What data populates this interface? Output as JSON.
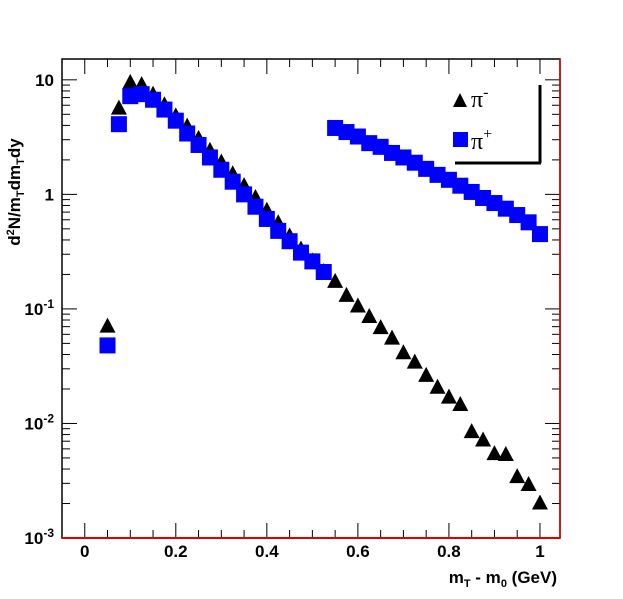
{
  "chart_data": {
    "type": "scatter",
    "title": "",
    "xlabel": "m_T - m_0 (GeV)",
    "xlabel_parts": {
      "m1": "m",
      "sub1": "T",
      "mid": " - m",
      "sub2": "0",
      "tail": " (GeV)"
    },
    "ylabel": "d²N/m_T dm_T dy",
    "ylabel_parts": {
      "a": "d",
      "sup": "2",
      "b": "N/m",
      "sub1": "T",
      "c": "dm",
      "sub2": "T",
      "d": "dy"
    },
    "xlim": [
      -0.05,
      1.044
    ],
    "ylim": [
      0.001,
      15.2
    ],
    "yscale": "log",
    "x_ticks": [
      "0",
      "0.2",
      "0.4",
      "0.6",
      "0.8",
      "1"
    ],
    "x_tick_values": [
      0,
      0.2,
      0.4,
      0.6,
      0.8,
      1
    ],
    "y_ticks": [
      {
        "value": 10,
        "base": "10",
        "exp": ""
      },
      {
        "value": 1,
        "base": "1",
        "exp": ""
      },
      {
        "value": 0.1,
        "base": "10",
        "exp": "-1"
      },
      {
        "value": 0.01,
        "base": "10",
        "exp": "-2"
      },
      {
        "value": 0.001,
        "base": "10",
        "exp": "-3"
      }
    ],
    "legend": {
      "position": "top-right",
      "entries": [
        {
          "symbol": "triangle",
          "label": "π",
          "sup": "-"
        },
        {
          "symbol": "square",
          "label": "π",
          "sup": "+"
        }
      ]
    },
    "series": [
      {
        "name": "π-",
        "marker": "triangle",
        "color": "#000000",
        "x": [
          0.05,
          0.075,
          0.1,
          0.125,
          0.15,
          0.175,
          0.2,
          0.225,
          0.25,
          0.275,
          0.3,
          0.325,
          0.35,
          0.375,
          0.4,
          0.425,
          0.45,
          0.475,
          0.5,
          0.525,
          0.55,
          0.575,
          0.6,
          0.625,
          0.65,
          0.675,
          0.7,
          0.725,
          0.75,
          0.775,
          0.8,
          0.825,
          0.85,
          0.875,
          0.9,
          0.925,
          0.95,
          0.975,
          1.0
        ],
        "y": [
          0.07,
          5.6,
          9.4,
          9.0,
          7.4,
          6.0,
          4.8,
          3.9,
          3.05,
          2.4,
          1.9,
          1.5,
          1.18,
          0.93,
          0.72,
          0.56,
          0.43,
          0.33,
          0.26,
          0.21,
          0.172,
          0.13,
          0.105,
          0.085,
          0.068,
          0.055,
          0.041,
          0.034,
          0.026,
          0.0205,
          0.0168,
          0.0145,
          0.0084,
          0.0071,
          0.0054,
          0.0053,
          0.0034,
          0.0029,
          0.002
        ]
      },
      {
        "name": "π+",
        "marker": "square",
        "color": "#0000ff",
        "x": [
          0.05,
          0.075,
          0.1,
          0.125,
          0.15,
          0.175,
          0.2,
          0.225,
          0.25,
          0.275,
          0.3,
          0.325,
          0.35,
          0.375,
          0.4,
          0.425,
          0.45,
          0.475,
          0.5,
          0.525,
          0.55,
          0.575,
          0.6,
          0.625,
          0.65,
          0.675,
          0.7,
          0.725,
          0.75,
          0.775,
          0.8,
          0.825,
          0.85,
          0.875,
          0.9,
          0.925,
          0.95,
          0.975,
          1.0
        ],
        "y": [
          0.048,
          4.1,
          7.2,
          7.5,
          6.7,
          5.5,
          4.4,
          3.4,
          2.7,
          2.1,
          1.64,
          1.29,
          1.0,
          0.78,
          0.61,
          0.48,
          0.39,
          0.31,
          0.26,
          0.21,
          3.8,
          3.5,
          3.2,
          2.8,
          2.6,
          2.3,
          2.1,
          1.89,
          1.67,
          1.48,
          1.34,
          1.19,
          1.05,
          0.93,
          0.84,
          0.75,
          0.66,
          0.57,
          0.45
        ]
      }
    ]
  }
}
